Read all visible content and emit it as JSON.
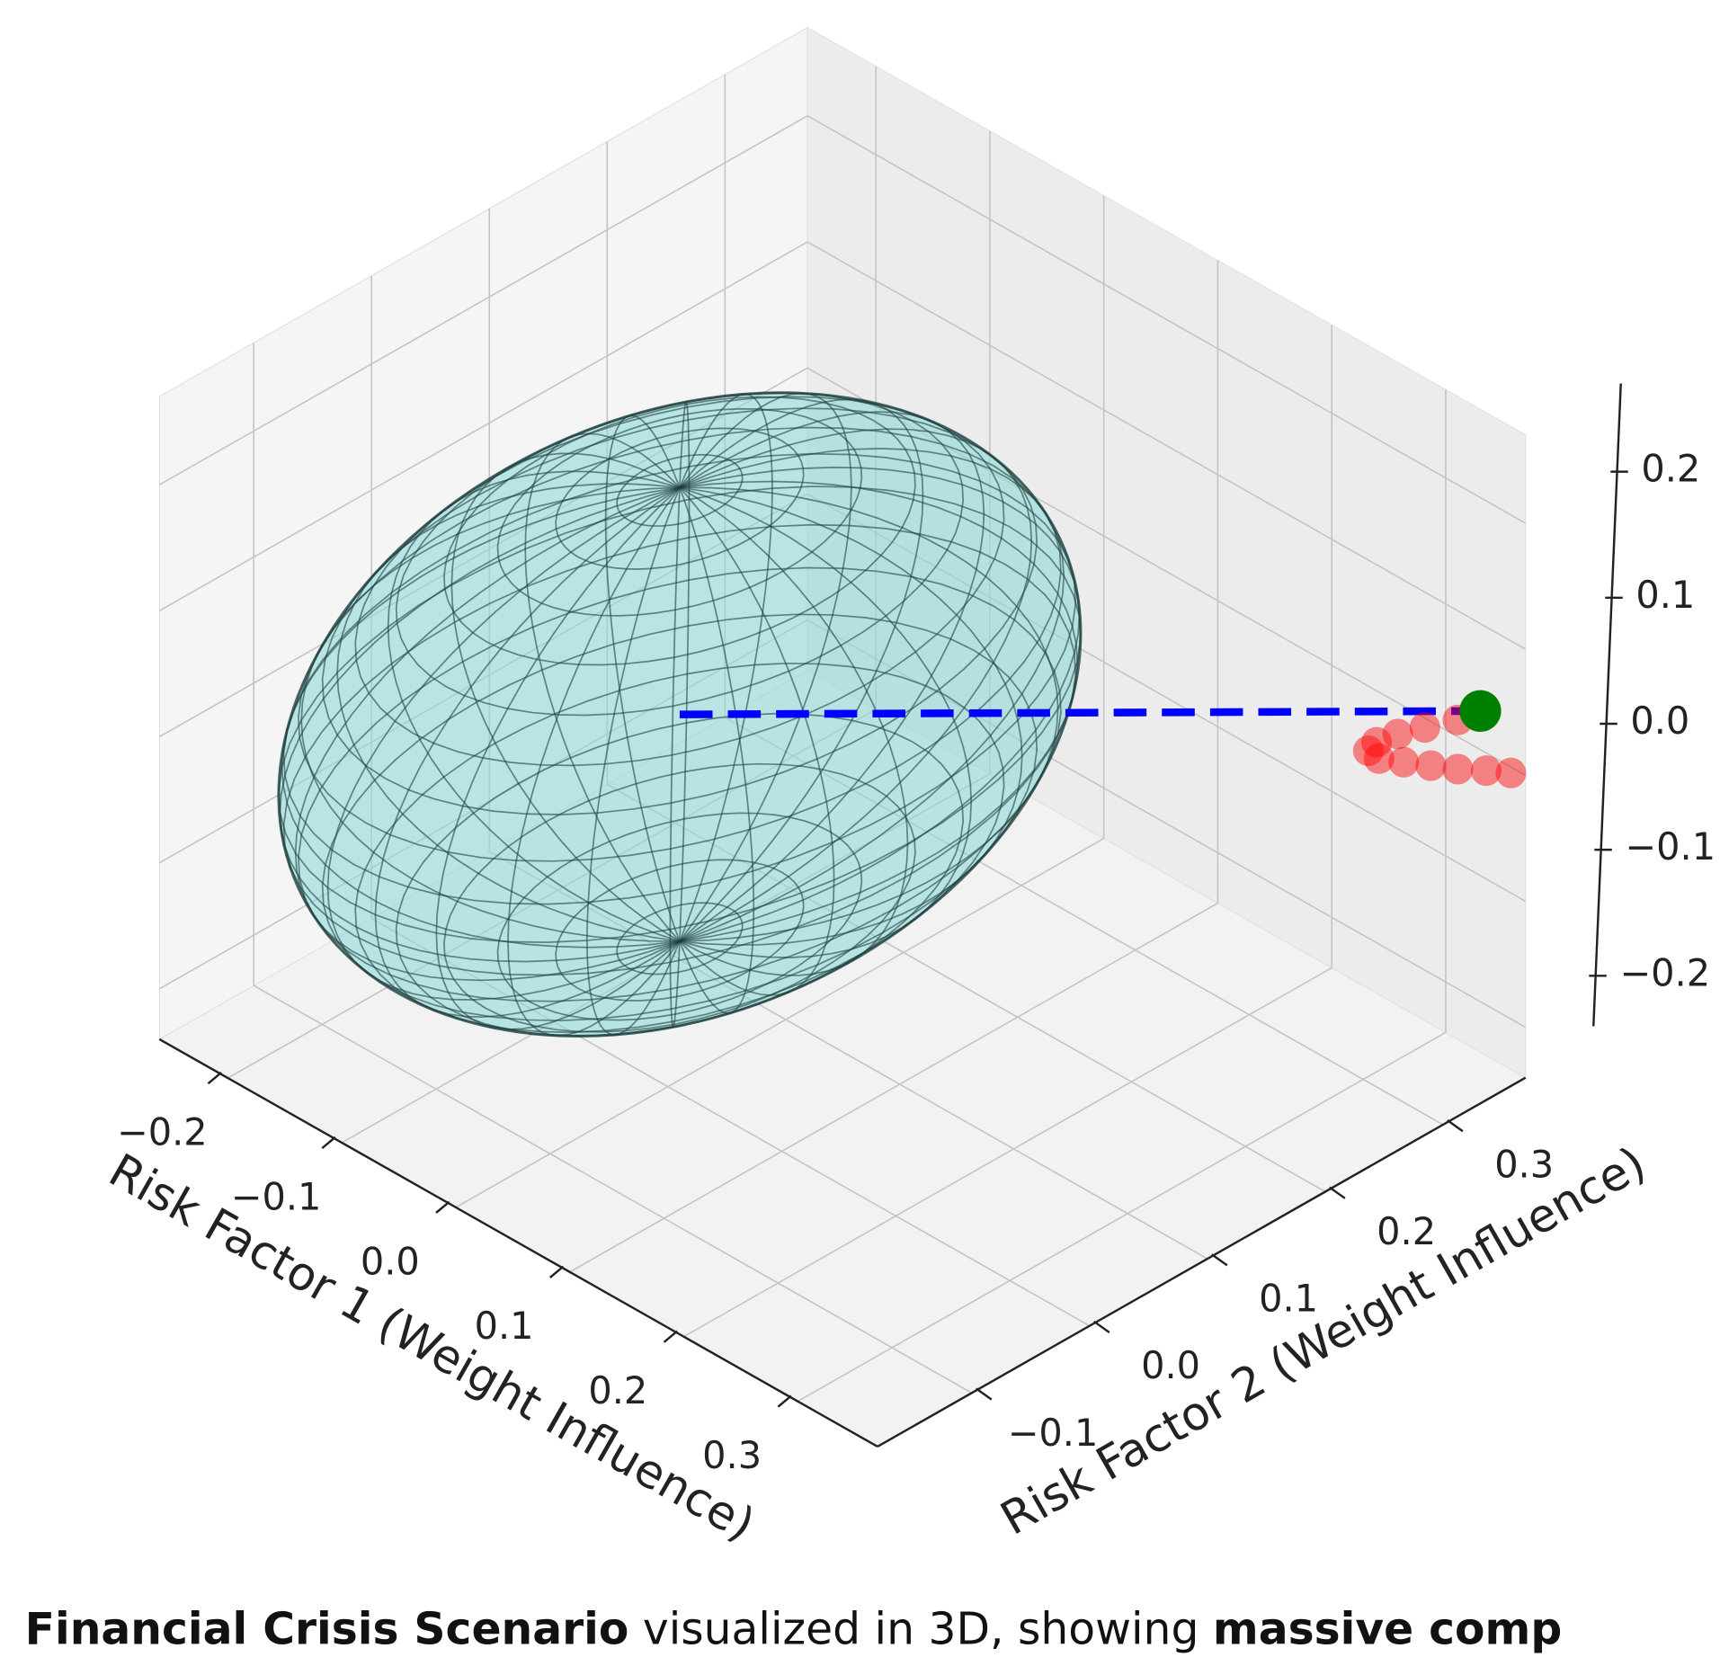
{
  "chart_data": {
    "type": "scatter3d",
    "xlabel": "Risk Factor 1 (Weight Influence)",
    "ylabel": "Risk Factor 2 (Weight Influence)",
    "xlim": [
      -0.26,
      0.37
    ],
    "ylim": [
      -0.18,
      0.37
    ],
    "zlim": [
      -0.24,
      0.27
    ],
    "xticks": [
      {
        "value": -0.2,
        "label": "−0.2"
      },
      {
        "value": -0.1,
        "label": "−0.1"
      },
      {
        "value": 0,
        "label": "0.0"
      },
      0.1,
      0.2,
      0.3
    ],
    "yticks": [
      {
        "value": -0.1,
        "label": "−0.1"
      },
      {
        "value": 0,
        "label": "0.0"
      },
      0.1,
      0.2,
      0.3
    ],
    "zticks": [
      {
        "value": -0.2,
        "label": "−0.2"
      },
      {
        "value": -0.1,
        "label": "−0.1"
      },
      {
        "value": 0,
        "label": "0.0"
      },
      0.1,
      0.2
    ],
    "grid": true,
    "ellipsoid": {
      "center": [
        0,
        0.01,
        0.05
      ],
      "radii": [
        0.2,
        0.28,
        0.18
      ],
      "color": "#8fd8d8",
      "edge_color": "#1f3f3f"
    },
    "path": {
      "color": "#0000ff",
      "style": "dashed"
    },
    "trajectory": {
      "color": "#ff0000",
      "x": [
        0.32,
        0.32,
        0.32,
        0.32,
        0.32,
        0.32,
        0.32,
        0.32,
        0.32,
        0.32,
        0.32
      ],
      "y": [
        0.361,
        0.333,
        0.31,
        0.292,
        0.285,
        0.294,
        0.315,
        0.338,
        0.361,
        0.385,
        0.406
      ],
      "z": [
        0.023,
        0.032,
        0.039,
        0.042,
        0.039,
        0.028,
        0.014,
        -0.001,
        -0.016,
        -0.03,
        -0.043
      ]
    },
    "current_point": {
      "color": "#008000",
      "x": 0.32,
      "y": 0.38,
      "z": 0.02
    },
    "caption": [
      {
        "text": "Financial Crisis Scenario",
        "bold": true
      },
      {
        "text": " visualized in 3D, showing ",
        "bold": false
      },
      {
        "text": "massive comp",
        "bold": true
      }
    ]
  }
}
